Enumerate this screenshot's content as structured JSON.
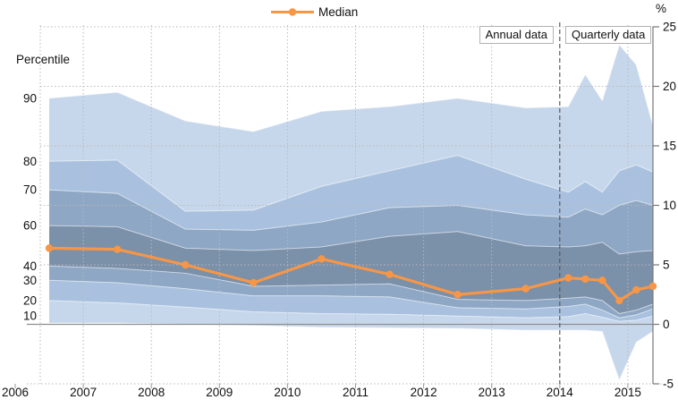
{
  "chart_data": {
    "type": "area",
    "subtype": "fan-chart-percentiles",
    "legend_label": "Median",
    "legend_position": "top-center",
    "left_axis_title": "Percentile",
    "right_axis_unit": "%",
    "annotation_annual": "Annual data",
    "annotation_quarterly": "Quarterly data",
    "divider_x": 2014.0,
    "grid": true,
    "ylim": [
      -5,
      25
    ],
    "right_axis_ticks": [
      -5,
      0,
      5,
      10,
      15,
      20,
      25
    ],
    "x_tick_labels": [
      "2006",
      "2007",
      "2008",
      "2009",
      "2010",
      "2011",
      "2012",
      "2013",
      "2014",
      "2015"
    ],
    "x_gridline_years": [
      2007,
      2008,
      2009,
      2010,
      2011,
      2012,
      2013,
      2015
    ],
    "percentile_labels": [
      {
        "text": "90",
        "value": 19.0
      },
      {
        "text": "80",
        "value": 13.7
      },
      {
        "text": "70",
        "value": 11.3
      },
      {
        "text": "60",
        "value": 8.3
      },
      {
        "text": "40",
        "value": 4.9
      },
      {
        "text": "30",
        "value": 3.7
      },
      {
        "text": "20",
        "value": 2.0
      },
      {
        "text": "10",
        "value": 0.7
      }
    ],
    "x": [
      2006.5,
      2007.5,
      2008.5,
      2009.5,
      2010.5,
      2011.5,
      2012.5,
      2013.5,
      2014.125,
      2014.375,
      2014.625,
      2014.875,
      2015.125,
      2015.375
    ],
    "series": [
      {
        "name": "P90",
        "values": [
          19.0,
          19.5,
          17.1,
          16.2,
          17.9,
          18.3,
          19.0,
          18.2,
          18.3,
          21.0,
          18.8,
          23.5,
          21.8,
          16.7
        ]
      },
      {
        "name": "P80",
        "values": [
          13.7,
          13.8,
          9.5,
          9.6,
          11.6,
          12.9,
          14.2,
          12.2,
          11.1,
          12.0,
          11.1,
          12.9,
          13.4,
          12.8
        ]
      },
      {
        "name": "P70",
        "values": [
          11.3,
          11.0,
          8.0,
          7.9,
          8.6,
          9.8,
          10.0,
          9.2,
          9.0,
          9.7,
          9.2,
          10.0,
          10.4,
          10.0
        ]
      },
      {
        "name": "P60",
        "values": [
          8.3,
          8.2,
          6.4,
          6.2,
          6.5,
          7.4,
          7.8,
          6.6,
          6.5,
          6.6,
          6.9,
          5.9,
          6.1,
          6.2
        ]
      },
      {
        "name": "Median",
        "values": [
          6.4,
          6.3,
          5.0,
          3.5,
          5.5,
          4.2,
          2.5,
          3.0,
          3.9,
          3.8,
          3.7,
          2.0,
          2.9,
          3.2
        ]
      },
      {
        "name": "P40",
        "values": [
          4.9,
          4.7,
          4.3,
          3.2,
          3.3,
          3.4,
          2.1,
          2.0,
          2.2,
          2.3,
          2.0,
          0.9,
          1.2,
          1.7
        ]
      },
      {
        "name": "P30",
        "values": [
          3.7,
          3.5,
          3.0,
          2.4,
          2.4,
          2.3,
          1.4,
          1.3,
          1.5,
          1.7,
          1.2,
          0.55,
          0.8,
          1.3
        ]
      },
      {
        "name": "P20",
        "values": [
          2.0,
          1.8,
          1.45,
          1.05,
          0.9,
          0.85,
          0.7,
          0.55,
          0.65,
          0.9,
          0.6,
          0.25,
          0.35,
          0.7
        ]
      },
      {
        "name": "P10",
        "values": [
          0.1,
          0.1,
          0.0,
          -0.1,
          -0.25,
          -0.3,
          -0.35,
          -0.5,
          -0.5,
          -0.5,
          -0.6,
          -4.7,
          -1.5,
          -0.6
        ]
      }
    ],
    "bands": [
      {
        "lower": "P80",
        "upper": "P90",
        "color": "#c7d7eb"
      },
      {
        "lower": "P70",
        "upper": "P80",
        "color": "#a9c1de"
      },
      {
        "lower": "P60",
        "upper": "P70",
        "color": "#8ea7c4"
      },
      {
        "lower": "P40",
        "upper": "P60",
        "color": "#7b90a9"
      },
      {
        "lower": "P30",
        "upper": "P40",
        "color": "#8ea7c4"
      },
      {
        "lower": "P20",
        "upper": "P30",
        "color": "#a9c1de"
      },
      {
        "lower": "P10",
        "upper": "P20",
        "color": "#c7d7eb"
      }
    ],
    "colors": {
      "median": "#f79646",
      "grid": "#b9b9b9",
      "zero_line": "#8f8f8f",
      "axis": "#777777",
      "divider": "#5a5a5a",
      "text": "#111111"
    }
  }
}
